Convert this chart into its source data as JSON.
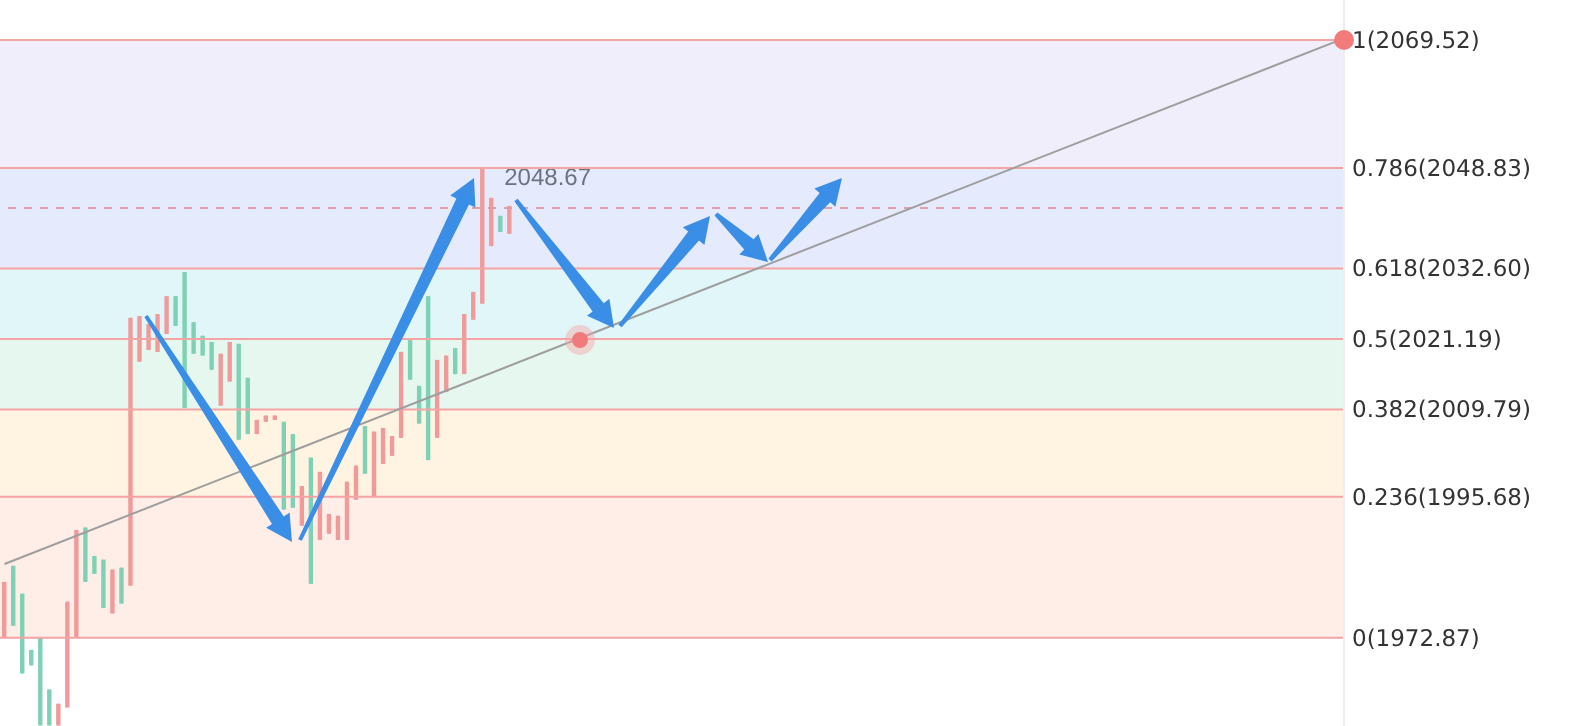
{
  "chart_data": {
    "type": "candlestick",
    "tick_labels": false,
    "categories": [
      null,
      null,
      null,
      null,
      null,
      null,
      null,
      null,
      null,
      null,
      null,
      null,
      null,
      null,
      null,
      null,
      null,
      null,
      null,
      null,
      null,
      null,
      null,
      null,
      null,
      null,
      null,
      null,
      null,
      null,
      null,
      null,
      null,
      null,
      null,
      null,
      null,
      null,
      null,
      null,
      null,
      null,
      null,
      null,
      null,
      null,
      null,
      null,
      null,
      null,
      null,
      null,
      null,
      null,
      null,
      null,
      null,
      null,
      null,
      null,
      null,
      null,
      null,
      null,
      null,
      null,
      null,
      null,
      null,
      null,
      null,
      null,
      null,
      null,
      null,
      null,
      null,
      null,
      null,
      null,
      null,
      null,
      null,
      null,
      null,
      null,
      null,
      null,
      null,
      null,
      null,
      null,
      null,
      null,
      null,
      null,
      null,
      null,
      null,
      null,
      null,
      null,
      null,
      null,
      null,
      null,
      null,
      null,
      null,
      null,
      null,
      null,
      null,
      null,
      null,
      null,
      null,
      null,
      null,
      null,
      null,
      null,
      null,
      null,
      null,
      null,
      null,
      null,
      null,
      null,
      null,
      null,
      null,
      null,
      null,
      null,
      null,
      null,
      null,
      null,
      null,
      null,
      null,
      null,
      null,
      null,
      null,
      null,
      null
    ],
    "series": [
      {
        "ohlc": [
          [
            1972.9,
            1981.9,
            1972.9,
            1981.9
          ],
          [
            1984.5,
            1984.5,
            1974.8,
            1974.8
          ],
          [
            1980.0,
            1980.0,
            1967.1,
            1967.1
          ],
          [
            1970.9,
            1970.9,
            1968.4,
            1968.4
          ],
          [
            1972.9,
            1972.9,
            1958.7,
            1958.7
          ],
          [
            1964.5,
            1964.5,
            1958.7,
            1958.7
          ],
          [
            1958.7,
            1962.2,
            1958.7,
            1962.2
          ],
          [
            1961.6,
            1978.7,
            1961.6,
            1978.7
          ],
          [
            1972.9,
            1990.3,
            1972.9,
            1990.3
          ],
          [
            1990.7,
            1990.7,
            1981.9,
            1981.9
          ],
          [
            1986.1,
            1986.1,
            1983.2,
            1983.2
          ],
          [
            1985.5,
            1985.5,
            1977.7,
            1977.7
          ],
          [
            1976.8,
            1983.9,
            1976.8,
            1983.9
          ],
          [
            1984.2,
            1984.2,
            1978.4,
            1978.4
          ],
          [
            1981.3,
            2024.6,
            1981.3,
            2024.6
          ],
          [
            2017.5,
            2024.9,
            2017.5,
            2024.9
          ],
          [
            2019.4,
            2023.6,
            2019.4,
            2023.6
          ],
          [
            2019.1,
            2025.2,
            2019.1,
            2025.2
          ],
          [
            2022.0,
            2028.1,
            2022.0,
            2028.1
          ],
          [
            2028.1,
            2028.1,
            2023.3,
            2023.3
          ],
          [
            2032.0,
            2032.0,
            2010.0,
            2010.0
          ],
          [
            2023.9,
            2023.9,
            2018.8,
            2018.8
          ],
          [
            2021.7,
            2021.7,
            2018.5,
            2018.5
          ],
          [
            2020.7,
            2020.7,
            2016.2,
            2016.2
          ],
          [
            2010.4,
            2018.8,
            2010.4,
            2018.8
          ],
          [
            2014.3,
            2020.7,
            2014.3,
            2020.7
          ],
          [
            2020.4,
            2020.4,
            2004.9,
            2004.9
          ],
          [
            2014.9,
            2014.9,
            2005.8,
            2005.8
          ],
          [
            2005.8,
            2008.1,
            2005.8,
            2008.1
          ],
          [
            2007.8,
            2008.8,
            2007.8,
            2008.8
          ],
          [
            2008.1,
            2008.8,
            2008.1,
            2008.8
          ],
          [
            2007.8,
            2007.8,
            1993.6,
            1993.6
          ],
          [
            2005.8,
            2005.8,
            1993.9,
            1993.9
          ],
          [
            1991.0,
            1997.4,
            1991.0,
            1997.4
          ],
          [
            2002.0,
            2002.0,
            1981.6,
            1981.6
          ],
          [
            1988.7,
            1999.7,
            1988.7,
            1999.7
          ],
          [
            1989.7,
            1992.9,
            1989.7,
            1992.9
          ],
          [
            1988.7,
            1992.6,
            1988.7,
            1992.6
          ],
          [
            1988.7,
            1998.1,
            1988.7,
            1998.1
          ],
          [
            1995.2,
            2000.7,
            1995.2,
            2000.7
          ],
          [
            2007.1,
            2007.1,
            1999.4,
            1999.4
          ],
          [
            1995.8,
            2006.2,
            1995.8,
            2006.2
          ],
          [
            2001.0,
            2006.8,
            2001.0,
            2006.8
          ],
          [
            2002.3,
            2005.5,
            2002.3,
            2005.5
          ],
          [
            2005.2,
            2019.1,
            2005.2,
            2019.1
          ],
          [
            2021.0,
            2021.0,
            2014.6,
            2014.6
          ],
          [
            2013.6,
            2013.6,
            2007.5,
            2007.5
          ],
          [
            2028.1,
            2028.1,
            2001.6,
            2001.6
          ],
          [
            2005.2,
            2017.8,
            2005.2,
            2017.8
          ],
          [
            2012.6,
            2018.5,
            2012.6,
            2018.5
          ],
          [
            2019.7,
            2019.7,
            2015.5,
            2015.5
          ],
          [
            2015.5,
            2025.2,
            2015.5,
            2025.2
          ],
          [
            2024.3,
            2028.8,
            2024.3,
            2028.8
          ],
          [
            2026.9,
            2048.67,
            2026.9,
            2048.67
          ],
          [
            2036.2,
            2044.0,
            2036.2,
            2044.0
          ],
          [
            2041.1,
            2041.1,
            2038.5,
            2038.5
          ],
          [
            2038.2,
            2042.7,
            2038.2,
            2042.7
          ],
          null,
          null,
          null,
          null,
          null,
          null,
          null,
          null,
          null,
          null,
          null,
          null,
          null,
          null,
          null,
          null,
          null,
          null,
          null,
          null,
          null,
          null,
          null,
          null,
          null,
          null,
          null,
          null,
          null,
          null,
          null,
          null,
          null,
          null,
          null,
          null,
          null,
          null,
          null,
          null,
          null,
          null,
          null,
          null,
          null,
          null,
          null,
          null,
          null,
          null,
          null,
          null,
          null,
          null,
          null,
          null,
          null,
          null,
          null,
          null,
          null,
          null,
          null,
          null,
          null,
          null,
          null,
          null,
          null,
          null,
          null,
          null,
          null,
          null,
          null,
          null,
          null,
          null,
          null,
          null,
          null,
          null,
          null,
          null,
          null,
          null,
          null,
          null,
          null,
          null,
          null,
          null
        ],
        "colors": [
          "#f09a9a",
          "#7fd1b5",
          "#7fd1b5",
          "#7fd1b5",
          "#7fd1b5",
          "#7fd1b5",
          "#f09a9a",
          "#f09a9a",
          "#f09a9a",
          "#7fd1b5",
          "#7fd1b5",
          "#7fd1b5",
          "#f09a9a",
          "#7fd1b5",
          "#f09a9a",
          "#f09a9a",
          "#f09a9a",
          "#f09a9a",
          "#f09a9a",
          "#7fd1b5",
          "#7fd1b5",
          "#7fd1b5",
          "#7fd1b5",
          "#7fd1b5",
          "#f09a9a",
          "#f09a9a",
          "#7fd1b5",
          "#7fd1b5",
          "#f09a9a",
          "#f09a9a",
          "#f09a9a",
          "#7fd1b5",
          "#7fd1b5",
          "#f09a9a",
          "#7fd1b5",
          "#f09a9a",
          "#f09a9a",
          "#f09a9a",
          "#f09a9a",
          "#f09a9a",
          "#7fd1b5",
          "#f09a9a",
          "#f09a9a",
          "#f09a9a",
          "#f09a9a",
          "#7fd1b5",
          "#7fd1b5",
          "#7fd1b5",
          "#f09a9a",
          "#f09a9a",
          "#7fd1b5",
          "#f09a9a",
          "#f09a9a",
          "#f09a9a",
          "#f09a9a",
          "#7fd1b5",
          "#f09a9a",
          null,
          null,
          null,
          null,
          null,
          null,
          null,
          null,
          null,
          null,
          null,
          null,
          null,
          null,
          null,
          null,
          null,
          null,
          null,
          null,
          null,
          null,
          null,
          null,
          null,
          null,
          null,
          null,
          null,
          null,
          null,
          null,
          null,
          null,
          null,
          null,
          null,
          null,
          null,
          null,
          null,
          null,
          null,
          null,
          null,
          null,
          null,
          null,
          null,
          null,
          null,
          null,
          null,
          null,
          null,
          null,
          null,
          null,
          null,
          null,
          null,
          null,
          null,
          null,
          null,
          null,
          null,
          null,
          null,
          null,
          null,
          null,
          null,
          null,
          null,
          null,
          null,
          null,
          null,
          null,
          null,
          null,
          null,
          null,
          null,
          null,
          null,
          null,
          null,
          null,
          null,
          null
        ]
      },
      {
        "type": "line",
        "color": "#9e9e9e",
        "values": [
          1984.8,
          null,
          null,
          null,
          null,
          null,
          null,
          null,
          null,
          null,
          null,
          null,
          null,
          null,
          null,
          null,
          null,
          null,
          null,
          null,
          null,
          null,
          null,
          null,
          null,
          null,
          null,
          null,
          null,
          null,
          null,
          null,
          null,
          null,
          null,
          null,
          null,
          null,
          null,
          null,
          null,
          null,
          null,
          null,
          null,
          null,
          null,
          null,
          null,
          null,
          null,
          null,
          null,
          null,
          null,
          null,
          null,
          null,
          null,
          null,
          null,
          null,
          null,
          null,
          null,
          null,
          null,
          null,
          null,
          null,
          null,
          null,
          null,
          null,
          null,
          null,
          null,
          null,
          null,
          null,
          null,
          null,
          null,
          null,
          null,
          null,
          null,
          null,
          null,
          null,
          null,
          null,
          null,
          null,
          null,
          null,
          null,
          null,
          null,
          null,
          null,
          null,
          null,
          null,
          null,
          null,
          null,
          null,
          null,
          null,
          null,
          null,
          null,
          null,
          null,
          null,
          null,
          null,
          null,
          null,
          null,
          null,
          null,
          null,
          null,
          null,
          null,
          null,
          null,
          null,
          null,
          null,
          null,
          null,
          null,
          null,
          null,
          null,
          null,
          null,
          null,
          null,
          null,
          null,
          null,
          null,
          null,
          null,
          2069.52
        ]
      }
    ],
    "ylim": [
      1958.6,
      2076.0
    ],
    "bands": [
      {
        "axis": "y",
        "from": 2048.83,
        "to": 2069.52,
        "color": "#f1eefb"
      },
      {
        "axis": "y",
        "from": 2032.6,
        "to": 2048.83,
        "color": "#e6eafd"
      },
      {
        "axis": "y",
        "from": 2021.19,
        "to": 2032.6,
        "color": "#e0f6f8"
      },
      {
        "axis": "y",
        "from": 2009.79,
        "to": 2021.19,
        "color": "#e5f7ee"
      },
      {
        "axis": "y",
        "from": 1995.68,
        "to": 2009.79,
        "color": "#fff4e2"
      },
      {
        "axis": "y",
        "from": 1972.87,
        "to": 1995.68,
        "color": "#ffeee8"
      }
    ],
    "ref_lines": [
      {
        "axis": "y",
        "value": 2069.52,
        "label": "1(2069.52)",
        "color": "#f5a3a3"
      },
      {
        "axis": "y",
        "value": 2048.83,
        "label": "0.786(2048.83)",
        "color": "#f5a3a3"
      },
      {
        "axis": "y",
        "value": 2032.6,
        "label": "0.618(2032.60)",
        "color": "#f5a3a3"
      },
      {
        "axis": "y",
        "value": 2021.19,
        "label": "0.5(2021.19)",
        "color": "#f5a3a3"
      },
      {
        "axis": "y",
        "value": 2009.79,
        "label": "0.382(2009.79)",
        "color": "#f5a3a3"
      },
      {
        "axis": "y",
        "value": 1995.68,
        "label": "0.236(1995.68)",
        "color": "#f5a3a3"
      },
      {
        "axis": "y",
        "value": 1972.87,
        "label": "0(1972.87)",
        "color": "#f5a3a3"
      },
      {
        "axis": "y",
        "value": 2042.37,
        "color": "#e0a0a8",
        "line_style": "dashed"
      }
    ],
    "annotations": [
      {
        "text": "2048.67",
        "y": 2048.67
      }
    ]
  }
}
